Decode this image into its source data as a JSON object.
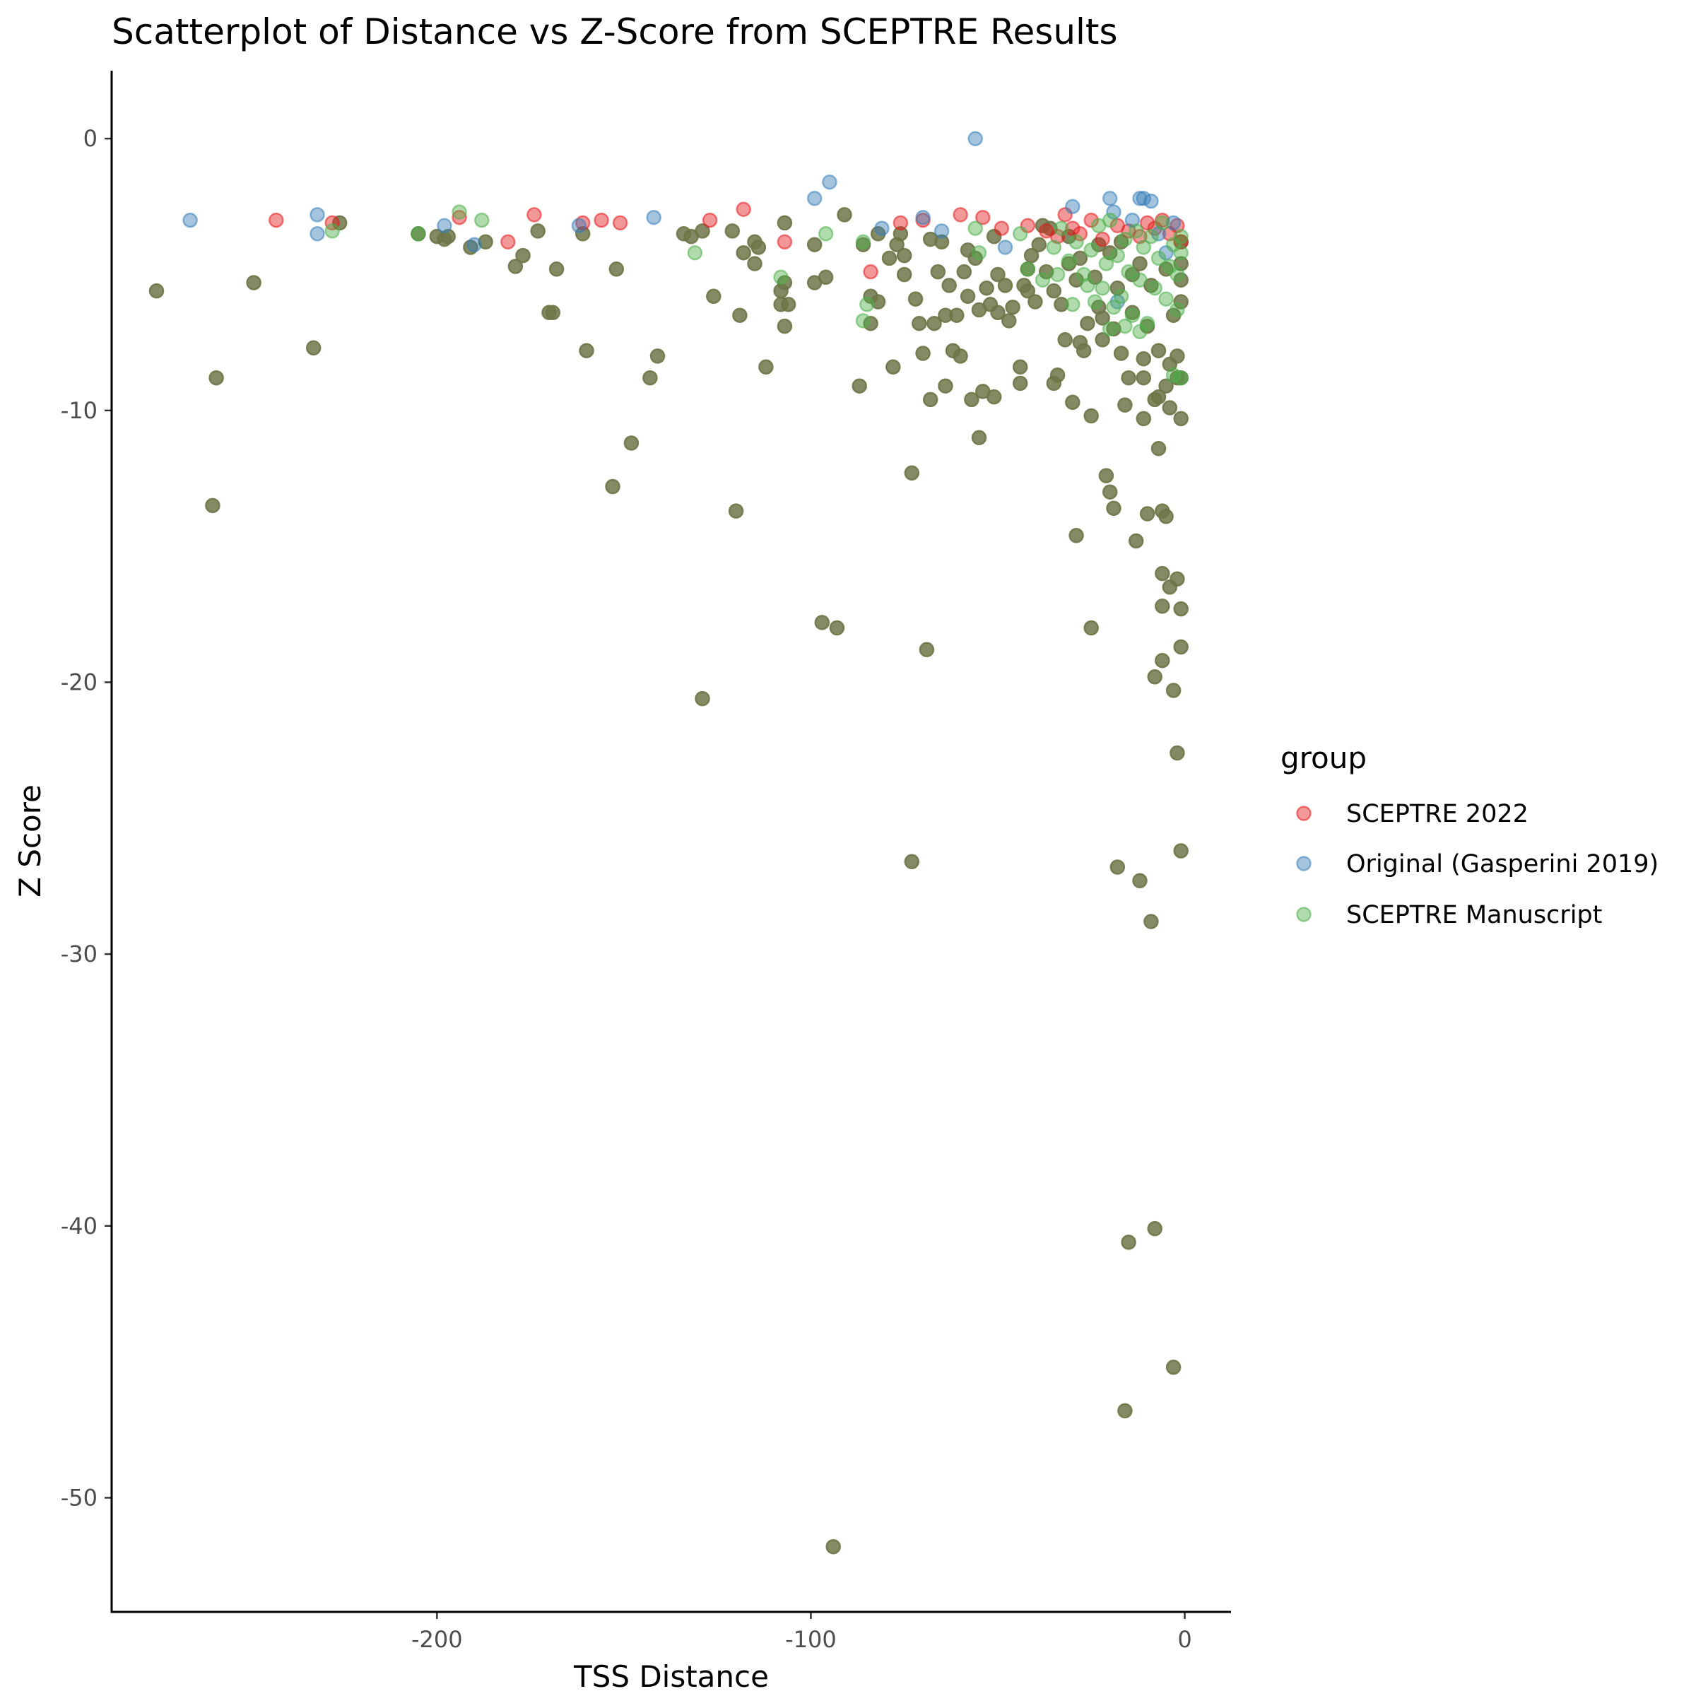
{
  "chart_data": {
    "type": "scatter",
    "title": "Scatterplot of Distance vs Z-Score from SCEPTRE Results",
    "xlabel": "TSS Distance",
    "ylabel": "Z Score",
    "xlim": [
      -287,
      12
    ],
    "ylim": [
      -54.2,
      2.5
    ],
    "x_ticks": [
      -200,
      -100,
      0
    ],
    "y_ticks": [
      0,
      -10,
      -20,
      -30,
      -40,
      -50
    ],
    "grid": false,
    "legend": {
      "title": "group",
      "placement": "right",
      "entries": [
        "SCEPTRE 2022",
        "Original (Gasperini 2019)",
        "SCEPTRE Manuscript"
      ]
    },
    "colors": {
      "SCEPTRE 2022": "#E41A1C",
      "Original (Gasperini 2019)": "#377EB8",
      "SCEPTRE Manuscript": "#4DAF4A",
      "overlap": "#6E7648"
    },
    "series": [
      {
        "name": "SCEPTRE 2022",
        "values": [
          [
            -243,
            -3.0
          ],
          [
            -228,
            -3.1
          ],
          [
            -194,
            -2.9
          ],
          [
            -181,
            -3.8
          ],
          [
            -174,
            -2.8
          ],
          [
            -161,
            -3.1
          ],
          [
            -156,
            -3.0
          ],
          [
            -151,
            -3.1
          ],
          [
            -127,
            -3.0
          ],
          [
            -118,
            -2.6
          ],
          [
            -107,
            -3.8
          ],
          [
            -84,
            -4.9
          ],
          [
            -76,
            -3.1
          ],
          [
            -70,
            -3.0
          ],
          [
            -60,
            -2.8
          ],
          [
            -54,
            -2.9
          ],
          [
            -49,
            -3.3
          ],
          [
            -42,
            -3.2
          ],
          [
            -37,
            -3.4
          ],
          [
            -34,
            -3.6
          ],
          [
            -32,
            -2.8
          ],
          [
            -30,
            -3.3
          ],
          [
            -28,
            -3.5
          ],
          [
            -25,
            -3.0
          ],
          [
            -22,
            -3.7
          ],
          [
            -18,
            -3.2
          ],
          [
            -15,
            -3.4
          ],
          [
            -12,
            -3.6
          ],
          [
            -10,
            -3.1
          ],
          [
            -8,
            -3.3
          ],
          [
            -6,
            -3.0
          ],
          [
            -4,
            -3.5
          ],
          [
            -2,
            -3.2
          ],
          [
            -1,
            -3.8
          ]
        ]
      },
      {
        "name": "Original (Gasperini 2019)",
        "values": [
          [
            -266,
            -3.0
          ],
          [
            -232,
            -2.8
          ],
          [
            -232,
            -3.5
          ],
          [
            -198,
            -3.2
          ],
          [
            -190,
            -3.9
          ],
          [
            -162,
            -3.2
          ],
          [
            -142,
            -2.9
          ],
          [
            -99,
            -2.2
          ],
          [
            -95,
            -1.6
          ],
          [
            -81,
            -3.3
          ],
          [
            -70,
            -2.9
          ],
          [
            -65,
            -3.4
          ],
          [
            -56,
            0.0
          ],
          [
            -48,
            -4.0
          ],
          [
            -30,
            -2.5
          ],
          [
            -20,
            -2.2
          ],
          [
            -19,
            -2.7
          ],
          [
            -14,
            -3.0
          ],
          [
            -12,
            -2.2
          ],
          [
            -11,
            -2.2
          ],
          [
            -9,
            -2.3
          ],
          [
            -18,
            -6.0
          ],
          [
            -7,
            -3.5
          ],
          [
            -5,
            -4.2
          ],
          [
            -3,
            -3.1
          ]
        ]
      },
      {
        "name": "SCEPTRE Manuscript",
        "values": [
          [
            -228,
            -3.4
          ],
          [
            -205,
            -3.5
          ],
          [
            -194,
            -2.7
          ],
          [
            -188,
            -3.0
          ],
          [
            -131,
            -4.2
          ],
          [
            -108,
            -5.1
          ],
          [
            -96,
            -3.5
          ],
          [
            -86,
            -3.8
          ],
          [
            -86,
            -6.7
          ],
          [
            -85,
            -6.1
          ],
          [
            -56,
            -3.3
          ],
          [
            -55,
            -4.2
          ],
          [
            -44,
            -3.5
          ],
          [
            -42,
            -4.8
          ],
          [
            -38,
            -5.2
          ],
          [
            -35,
            -4.0
          ],
          [
            -33,
            -3.3
          ],
          [
            -31,
            -4.5
          ],
          [
            -29,
            -3.8
          ],
          [
            -27,
            -5.0
          ],
          [
            -25,
            -4.1
          ],
          [
            -23,
            -3.2
          ],
          [
            -22,
            -5.5
          ],
          [
            -21,
            -4.6
          ],
          [
            -20,
            -3.0
          ],
          [
            -19,
            -6.2
          ],
          [
            -18,
            -4.3
          ],
          [
            -17,
            -5.8
          ],
          [
            -16,
            -3.7
          ],
          [
            -15,
            -4.9
          ],
          [
            -14,
            -6.5
          ],
          [
            -13,
            -3.4
          ],
          [
            -12,
            -5.2
          ],
          [
            -11,
            -4.0
          ],
          [
            -10,
            -6.8
          ],
          [
            -9,
            -3.6
          ],
          [
            -8,
            -5.5
          ],
          [
            -7,
            -4.4
          ],
          [
            -6,
            -3.1
          ],
          [
            -5,
            -5.9
          ],
          [
            -4,
            -4.7
          ],
          [
            -3,
            -3.9
          ],
          [
            -2,
            -6.3
          ],
          [
            -2,
            -5.0
          ],
          [
            -1,
            -4.2
          ],
          [
            -1,
            -3.6
          ],
          [
            -1,
            -8.8
          ],
          [
            -3,
            -8.7
          ],
          [
            -12,
            -7.1
          ],
          [
            -16,
            -6.9
          ],
          [
            -20,
            -7.0
          ],
          [
            -24,
            -6.0
          ],
          [
            -26,
            -5.4
          ],
          [
            -30,
            -6.1
          ],
          [
            -34,
            -5.0
          ]
        ]
      },
      {
        "name": "",
        "values": [
          [
            -275,
            -5.6
          ],
          [
            -260,
            -13.5
          ],
          [
            -259,
            -8.8
          ],
          [
            -249,
            -5.3
          ],
          [
            -233,
            -7.7
          ],
          [
            -226,
            -3.1
          ],
          [
            -205,
            -3.5
          ],
          [
            -200,
            -3.6
          ],
          [
            -198,
            -3.7
          ],
          [
            -197,
            -3.6
          ],
          [
            -191,
            -4.0
          ],
          [
            -187,
            -3.8
          ],
          [
            -179,
            -4.7
          ],
          [
            -177,
            -4.3
          ],
          [
            -173,
            -3.4
          ],
          [
            -170,
            -6.4
          ],
          [
            -169,
            -6.4
          ],
          [
            -168,
            -4.8
          ],
          [
            -161,
            -3.5
          ],
          [
            -160,
            -7.8
          ],
          [
            -153,
            -12.8
          ],
          [
            -152,
            -4.8
          ],
          [
            -148,
            -11.2
          ],
          [
            -143,
            -8.8
          ],
          [
            -141,
            -8.0
          ],
          [
            -134,
            -3.5
          ],
          [
            -132,
            -3.6
          ],
          [
            -129,
            -20.6
          ],
          [
            -129,
            -3.4
          ],
          [
            -126,
            -5.8
          ],
          [
            -121,
            -3.4
          ],
          [
            -120,
            -13.7
          ],
          [
            -119,
            -6.5
          ],
          [
            -118,
            -4.2
          ],
          [
            -115,
            -3.8
          ],
          [
            -115,
            -4.6
          ],
          [
            -114,
            -4.0
          ],
          [
            -112,
            -8.4
          ],
          [
            -108,
            -5.6
          ],
          [
            -108,
            -6.1
          ],
          [
            -107,
            -3.1
          ],
          [
            -107,
            -5.3
          ],
          [
            -107,
            -6.9
          ],
          [
            -106,
            -6.1
          ],
          [
            -99,
            -3.9
          ],
          [
            -99,
            -5.3
          ],
          [
            -97,
            -17.8
          ],
          [
            -96,
            -5.1
          ],
          [
            -94,
            -51.8
          ],
          [
            -93,
            -18.0
          ],
          [
            -91,
            -2.8
          ],
          [
            -87,
            -9.1
          ],
          [
            -86,
            -3.9
          ],
          [
            -84,
            -5.8
          ],
          [
            -84,
            -6.8
          ],
          [
            -82,
            -6.0
          ],
          [
            -82,
            -3.5
          ],
          [
            -79,
            -4.4
          ],
          [
            -78,
            -8.4
          ],
          [
            -77,
            -3.9
          ],
          [
            -76,
            -3.5
          ],
          [
            -75,
            -4.3
          ],
          [
            -75,
            -5.0
          ],
          [
            -73,
            -12.3
          ],
          [
            -73,
            -26.6
          ],
          [
            -72,
            -5.9
          ],
          [
            -71,
            -6.8
          ],
          [
            -70,
            -7.9
          ],
          [
            -69,
            -18.8
          ],
          [
            -68,
            -9.6
          ],
          [
            -68,
            -3.7
          ],
          [
            -67,
            -6.8
          ],
          [
            -66,
            -4.9
          ],
          [
            -65,
            -3.8
          ],
          [
            -64,
            -6.5
          ],
          [
            -64,
            -9.1
          ],
          [
            -63,
            -5.4
          ],
          [
            -62,
            -7.8
          ],
          [
            -61,
            -6.5
          ],
          [
            -60,
            -8.0
          ],
          [
            -59,
            -4.9
          ],
          [
            -58,
            -5.8
          ],
          [
            -58,
            -4.1
          ],
          [
            -57,
            -9.6
          ],
          [
            -56,
            -4.4
          ],
          [
            -55,
            -11.0
          ],
          [
            -55,
            -6.3
          ],
          [
            -54,
            -9.3
          ],
          [
            -53,
            -5.5
          ],
          [
            -52,
            -6.1
          ],
          [
            -51,
            -3.6
          ],
          [
            -51,
            -9.5
          ],
          [
            -50,
            -5.0
          ],
          [
            -50,
            -6.4
          ],
          [
            -48,
            -5.4
          ],
          [
            -47,
            -6.7
          ],
          [
            -46,
            -6.2
          ],
          [
            -44,
            -9.0
          ],
          [
            -44,
            -8.4
          ],
          [
            -43,
            -5.4
          ],
          [
            -42,
            -5.6
          ],
          [
            -42,
            -4.8
          ],
          [
            -41,
            -4.3
          ],
          [
            -40,
            -6.0
          ],
          [
            -39,
            -3.9
          ],
          [
            -38,
            -3.2
          ],
          [
            -37,
            -4.9
          ],
          [
            -36,
            -3.3
          ],
          [
            -35,
            -5.6
          ],
          [
            -35,
            -9.0
          ],
          [
            -34,
            -8.7
          ],
          [
            -33,
            -6.1
          ],
          [
            -32,
            -7.4
          ],
          [
            -31,
            -3.6
          ],
          [
            -31,
            -4.6
          ],
          [
            -30,
            -9.7
          ],
          [
            -29,
            -14.6
          ],
          [
            -29,
            -5.2
          ],
          [
            -28,
            -7.5
          ],
          [
            -28,
            -4.4
          ],
          [
            -27,
            -7.8
          ],
          [
            -26,
            -6.8
          ],
          [
            -25,
            -10.2
          ],
          [
            -25,
            -18.0
          ],
          [
            -24,
            -5.1
          ],
          [
            -23,
            -6.2
          ],
          [
            -23,
            -3.9
          ],
          [
            -22,
            -6.6
          ],
          [
            -22,
            -7.4
          ],
          [
            -21,
            -12.4
          ],
          [
            -20,
            -4.2
          ],
          [
            -20,
            -13.0
          ],
          [
            -19,
            -13.6
          ],
          [
            -19,
            -7.0
          ],
          [
            -18,
            -5.5
          ],
          [
            -18,
            -26.8
          ],
          [
            -17,
            -7.9
          ],
          [
            -17,
            -3.8
          ],
          [
            -16,
            -9.8
          ],
          [
            -16,
            -46.8
          ],
          [
            -15,
            -40.6
          ],
          [
            -15,
            -8.8
          ],
          [
            -14,
            -5.0
          ],
          [
            -14,
            -6.4
          ],
          [
            -13,
            -14.8
          ],
          [
            -12,
            -4.6
          ],
          [
            -12,
            -27.3
          ],
          [
            -11,
            -8.1
          ],
          [
            -11,
            -10.3
          ],
          [
            -11,
            -8.8
          ],
          [
            -10,
            -13.8
          ],
          [
            -10,
            -6.9
          ],
          [
            -9,
            -5.4
          ],
          [
            -9,
            -28.8
          ],
          [
            -8,
            -19.8
          ],
          [
            -8,
            -40.1
          ],
          [
            -8,
            -9.6
          ],
          [
            -7,
            -9.5
          ],
          [
            -7,
            -11.4
          ],
          [
            -7,
            -7.8
          ],
          [
            -6,
            -16.0
          ],
          [
            -6,
            -17.2
          ],
          [
            -6,
            -19.2
          ],
          [
            -6,
            -13.7
          ],
          [
            -5,
            -13.9
          ],
          [
            -5,
            -9.1
          ],
          [
            -5,
            -4.8
          ],
          [
            -4,
            -16.5
          ],
          [
            -4,
            -9.9
          ],
          [
            -4,
            -8.3
          ],
          [
            -3,
            -20.3
          ],
          [
            -3,
            -45.2
          ],
          [
            -3,
            -6.5
          ],
          [
            -2,
            -22.6
          ],
          [
            -2,
            -16.2
          ],
          [
            -2,
            -8.8
          ],
          [
            -2,
            -8.0
          ],
          [
            -1,
            -26.2
          ],
          [
            -1,
            -17.3
          ],
          [
            -1,
            -18.7
          ],
          [
            -1,
            -10.3
          ],
          [
            -1,
            -8.8
          ],
          [
            -1,
            -6.0
          ],
          [
            -1,
            -5.2
          ],
          [
            -1,
            -4.6
          ],
          [
            -1,
            -3.8
          ]
        ]
      }
    ]
  }
}
